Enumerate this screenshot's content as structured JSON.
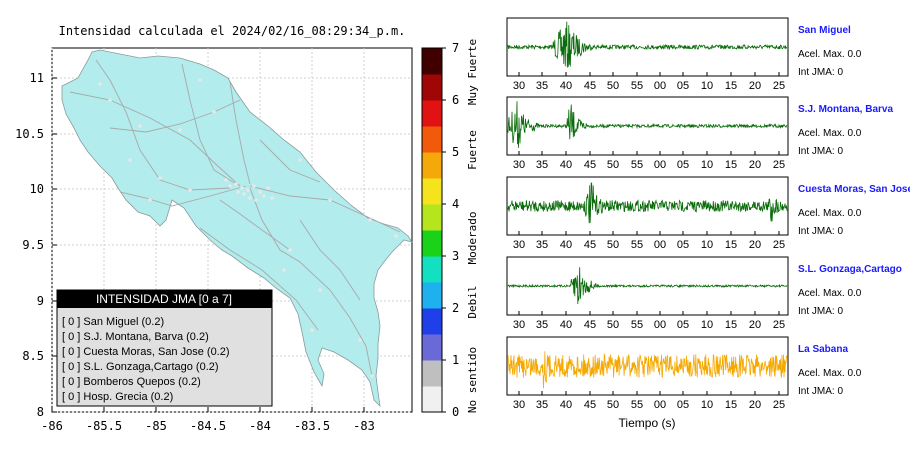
{
  "map": {
    "title": "Intensidad calculada el 2024/02/16_08:29:34_p.m.",
    "land_color": "#b3ecec",
    "y_ticks": [
      "11",
      "10.5",
      "10",
      "9.5",
      "9",
      "8.5",
      "8"
    ],
    "x_ticks": [
      "-86",
      "-85.5",
      "-85",
      "-84.5",
      "-84",
      "-83.5",
      "-83"
    ]
  },
  "legend": {
    "header": "INTENSIDAD JMA [0 a 7]",
    "items": [
      "[ 0 ] San Miguel (0.2)",
      "[ 0 ] S.J. Montana, Barva (0.2)",
      "[ 0 ] Cuesta Moras, San Jose (0.2)",
      "[ 0 ] S.L. Gonzaga,Cartago (0.2)",
      "[ 0 ] Bomberos Quepos (0.2)",
      "[ 0 ] Hosp. Grecia (0.2)"
    ]
  },
  "colorbar": {
    "ticks": [
      "7",
      "6",
      "5",
      "4",
      "3",
      "2",
      "1",
      "0"
    ],
    "labels": [
      "Muy Fuerte",
      "Fuerte",
      "Moderado",
      "Debil",
      "No sentido"
    ],
    "colors": [
      "#f0f0f0",
      "#bfbfbf",
      "#6a6ad6",
      "#1f3fe8",
      "#1fb0f0",
      "#13e0c0",
      "#19d219",
      "#b5e61d",
      "#f5e41d",
      "#f5a80a",
      "#f05a0a",
      "#e01212",
      "#a00606",
      "#400000"
    ]
  },
  "stations": [
    {
      "name": "San Miguel",
      "pga": "Acel. Max. 0.0",
      "jma": "Int JMA: 0",
      "color": "#0a6b0a"
    },
    {
      "name": "S.J. Montana, Barva",
      "pga": "Acel. Max. 0.0",
      "jma": "Int JMA: 0",
      "color": "#0a6b0a"
    },
    {
      "name": "Cuesta Moras, San Jose",
      "pga": "Acel. Max. 0.0",
      "jma": "Int JMA: 0",
      "color": "#0a6b0a"
    },
    {
      "name": "S.L. Gonzaga,Cartago",
      "pga": "Acel. Max. 0.0",
      "jma": "Int JMA: 0",
      "color": "#0a6b0a"
    },
    {
      "name": "La Sabana",
      "pga": "Acel. Max. 0.0",
      "jma": "Int JMA: 0",
      "color": "#f5a800"
    }
  ],
  "time_ticks": [
    "30",
    "35",
    "40",
    "45",
    "50",
    "55",
    "00",
    "05",
    "10",
    "15",
    "20",
    "25"
  ],
  "time_label": "Tiempo (s)",
  "name_color": "#1a1aff",
  "chart_data": [
    {
      "type": "heatmap",
      "title": "Intensidad calculada el 2024/02/16_08:29:34_p.m.",
      "xlabel": "",
      "ylabel": "",
      "xlim": [
        -86,
        -82.5
      ],
      "ylim": [
        8,
        11.3
      ],
      "grid": true,
      "legend_placement": "bottom-left",
      "colorbar_range": [
        0,
        7
      ],
      "series": [
        {
          "name": "San Miguel",
          "intensity": 0.2
        },
        {
          "name": "S.J. Montana, Barva",
          "intensity": 0.2
        },
        {
          "name": "Cuesta Moras, San Jose",
          "intensity": 0.2
        },
        {
          "name": "S.L. Gonzaga,Cartago",
          "intensity": 0.2
        },
        {
          "name": "Bomberos Quepos",
          "intensity": 0.2
        },
        {
          "name": "Hosp. Grecia",
          "intensity": 0.2
        }
      ]
    },
    {
      "type": "line",
      "xlabel": "Tiempo (s)",
      "x_tick_labels": [
        "30",
        "35",
        "40",
        "45",
        "50",
        "55",
        "00",
        "05",
        "10",
        "15",
        "20",
        "25"
      ],
      "series": [
        {
          "name": "San Miguel",
          "event_windows": [
            [
              37,
              43
            ]
          ],
          "peak_relative": 1.0
        },
        {
          "name": "S.J. Montana, Barva",
          "event_windows": [
            [
              27,
              31
            ],
            [
              40,
              42
            ]
          ],
          "peak_relative": 1.0
        },
        {
          "name": "Cuesta Moras, San Jose",
          "event_windows": [
            [
              44,
              47
            ],
            [
              85,
              86
            ]
          ],
          "peak_relative": 1.0
        },
        {
          "name": "S.L. Gonzaga,Cartago",
          "event_windows": [
            [
              41,
              44
            ]
          ],
          "peak_relative": 1.0
        },
        {
          "name": "La Sabana",
          "event_windows": [
            [
              34,
              36
            ]
          ],
          "peak_relative": 1.0
        }
      ]
    }
  ]
}
